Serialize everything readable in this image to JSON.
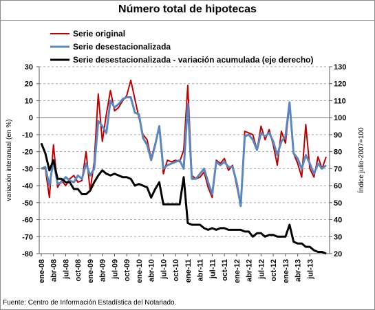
{
  "chart_data": {
    "type": "line",
    "title": "Número total de hipotecas",
    "ylabel": "variación interanual (en %)",
    "y2label": "Índice julio-2007=100",
    "ylim": [
      -80,
      30
    ],
    "y2lim": [
      20,
      130
    ],
    "yticks": [
      30,
      20,
      10,
      0,
      -10,
      -20,
      -30,
      -40,
      -50,
      -60,
      -70,
      -80
    ],
    "y2ticks": [
      130,
      120,
      110,
      100,
      90,
      80,
      70,
      60,
      50,
      40,
      30,
      20
    ],
    "xtick_labels": [
      "ene-08",
      "abr-08",
      "jul-08",
      "oct-08",
      "ene-09",
      "abr-09",
      "jul-09",
      "oct-09",
      "ene-10",
      "abr-10",
      "jul-10",
      "oct-10",
      "ene-11",
      "abr-11",
      "jul-11",
      "oct-11",
      "ene-12",
      "abr-12",
      "jul-12",
      "oct-12",
      "ene-13",
      "abr-13",
      "jul-13"
    ],
    "series": [
      {
        "name": "Serie original",
        "color": "#c00000",
        "axis": "left",
        "values": [
          -30,
          -30,
          -47,
          -16,
          -41,
          -37,
          -40,
          -36,
          -34,
          -38,
          -37,
          -20,
          -43,
          -26,
          14,
          -14,
          2,
          16,
          4,
          6,
          10,
          13,
          22,
          11,
          0,
          -10,
          -13,
          -24,
          -15,
          -5,
          -33,
          -25,
          -26,
          -25,
          -26,
          -19,
          19,
          -34,
          -36,
          -35,
          -32,
          -41,
          -47,
          -25,
          -27,
          -24,
          -31,
          -28,
          -40,
          -52,
          -8,
          -9,
          -10,
          -19,
          -5,
          -13,
          -7,
          -16,
          -28,
          -8,
          -15,
          8,
          -21,
          -27,
          -35,
          -4,
          -30,
          -35,
          -23,
          -30,
          -23
        ]
      },
      {
        "name": "Serie desestacionalizada",
        "color": "#5b87c0",
        "axis": "left",
        "values": [
          -30,
          -29,
          -40,
          -25,
          -39,
          -38,
          -35,
          -37,
          -38,
          -34,
          -36,
          -27,
          -34,
          -30,
          -2,
          -5,
          -9,
          10,
          6,
          8,
          11,
          12,
          12,
          3,
          2,
          -12,
          -16,
          -25,
          -16,
          -5,
          -30,
          -28,
          -27,
          -26,
          -25,
          -30,
          8,
          -36,
          -36,
          -33,
          -30,
          -38,
          -45,
          -26,
          -28,
          -26,
          -29,
          -29,
          -38,
          -52,
          -11,
          -10,
          -13,
          -19,
          -9,
          -11,
          -9,
          -14,
          -22,
          -14,
          -11,
          9,
          -21,
          -24,
          -30,
          -22,
          -27,
          -33,
          -27,
          -30,
          -28
        ]
      },
      {
        "name": "Serie desestacionalizada - variación acumulada (eje derecho)",
        "color": "#000000",
        "axis": "right",
        "values": [
          85,
          79,
          69,
          75,
          64,
          64,
          62,
          62,
          58,
          58,
          55,
          55,
          57,
          62,
          66,
          69,
          67,
          66,
          67,
          66,
          65,
          65,
          64,
          60,
          61,
          60,
          59,
          53,
          58,
          62,
          49,
          49,
          49,
          49,
          49,
          65,
          38,
          37,
          37,
          37,
          35,
          34,
          35,
          34,
          35,
          35,
          34,
          34,
          34,
          34,
          33,
          33,
          30,
          32,
          32,
          30,
          31,
          31,
          30,
          30,
          30,
          37,
          27,
          26,
          26,
          24,
          24,
          22,
          21,
          21,
          20
        ]
      }
    ],
    "legend_position": "top"
  },
  "source_note": "Fuente: Centro de Información Estadística del Notariado."
}
